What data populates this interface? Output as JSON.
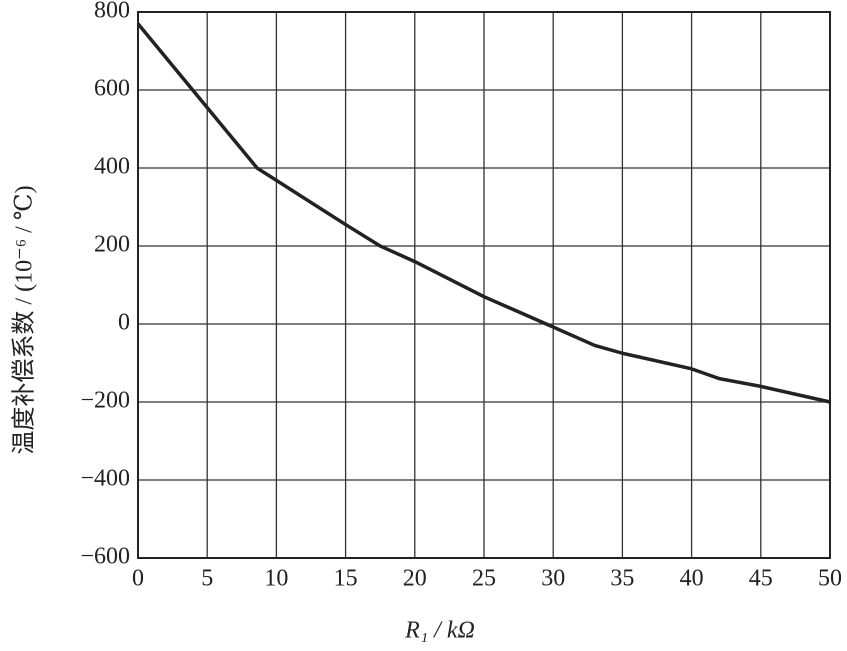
{
  "chart_data": {
    "type": "line",
    "xlabel": "R₁ / kΩ",
    "ylabel": "温度补偿系数 / (10⁻⁶ / ℃)",
    "series": [
      {
        "color": "#222222",
        "x": [
          0,
          8.6,
          15,
          17.5,
          20,
          25,
          29.5,
          33,
          35,
          40,
          42,
          45,
          50
        ],
        "values": [
          770,
          400,
          255,
          200,
          160,
          70,
          0,
          -55,
          -75,
          -115,
          -140,
          -160,
          -200
        ]
      }
    ],
    "xlim": [
      0,
      50
    ],
    "xticks": [
      0,
      5,
      10,
      15,
      20,
      25,
      30,
      35,
      40,
      45,
      50
    ],
    "ylim": [
      -600,
      800
    ],
    "yticks": [
      {
        "value": -600,
        "label": "−600"
      },
      {
        "value": -400,
        "label": "−400"
      },
      {
        "value": -200,
        "label": "−200"
      },
      0,
      200,
      400,
      600,
      800
    ],
    "grid": true
  }
}
